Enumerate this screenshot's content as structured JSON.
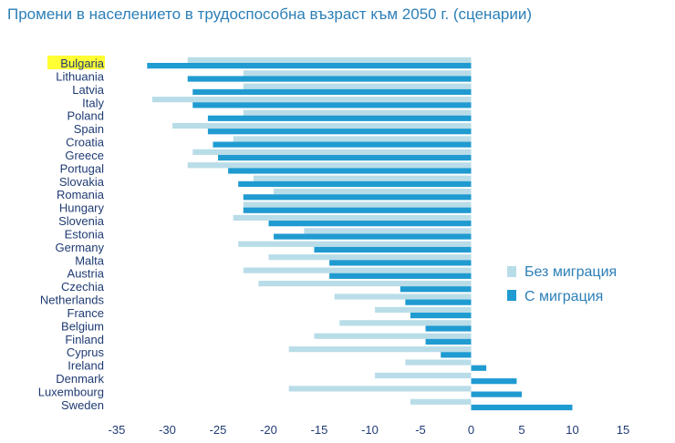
{
  "title": "Промени в населението в трудоспособна възраст към 2050 г. (сценарии)",
  "colors": {
    "no_migration": "#b9dde8",
    "with_migration": "#1f9bd1",
    "text": "#1f3b73",
    "title": "#2c7fb8",
    "highlight": "#ffff33"
  },
  "chart_data": {
    "type": "bar",
    "orientation": "horizontal",
    "title": "Промени в населението в трудоспособна възраст към 2050 г. (сценарии)",
    "highlight_category": "Bulgaria",
    "categories": [
      "Bulgaria",
      "Lithuania",
      "Latvia",
      "Italy",
      "Poland",
      "Spain",
      "Croatia",
      "Greece",
      "Portugal",
      "Slovakia",
      "Romania",
      "Hungary",
      "Slovenia",
      "Estonia",
      "Germany",
      "Malta",
      "Austria",
      "Czechia",
      "Netherlands",
      "France",
      "Belgium",
      "Finland",
      "Cyprus",
      "Ireland",
      "Denmark",
      "Luxembourg",
      "Sweden"
    ],
    "series": [
      {
        "name": "Без миграция",
        "values": [
          -28,
          -22.5,
          -22.5,
          -31.5,
          -22.5,
          -29.5,
          -23.5,
          -27.5,
          -28,
          -21.5,
          -19.5,
          -22.5,
          -23.5,
          -16.5,
          -23,
          -20,
          -22.5,
          -21,
          -13.5,
          -9.5,
          -13,
          -15.5,
          -18,
          -6.5,
          -9.5,
          -18,
          -6
        ]
      },
      {
        "name": "С миграция",
        "values": [
          -32,
          -28,
          -27.5,
          -27.5,
          -26,
          -26,
          -25.5,
          -25,
          -24,
          -23,
          -22.5,
          -22.5,
          -20,
          -19.5,
          -15.5,
          -14,
          -14,
          -7,
          -6.5,
          -6,
          -4.5,
          -4.5,
          -3,
          1.5,
          4.5,
          5,
          10
        ]
      }
    ],
    "xlim": [
      -35,
      15
    ],
    "xticks": [
      "-35",
      "-30",
      "-25",
      "-20",
      "-15",
      "-10",
      "-5",
      "0",
      "5",
      "10",
      "15"
    ],
    "legend_position": "right"
  }
}
